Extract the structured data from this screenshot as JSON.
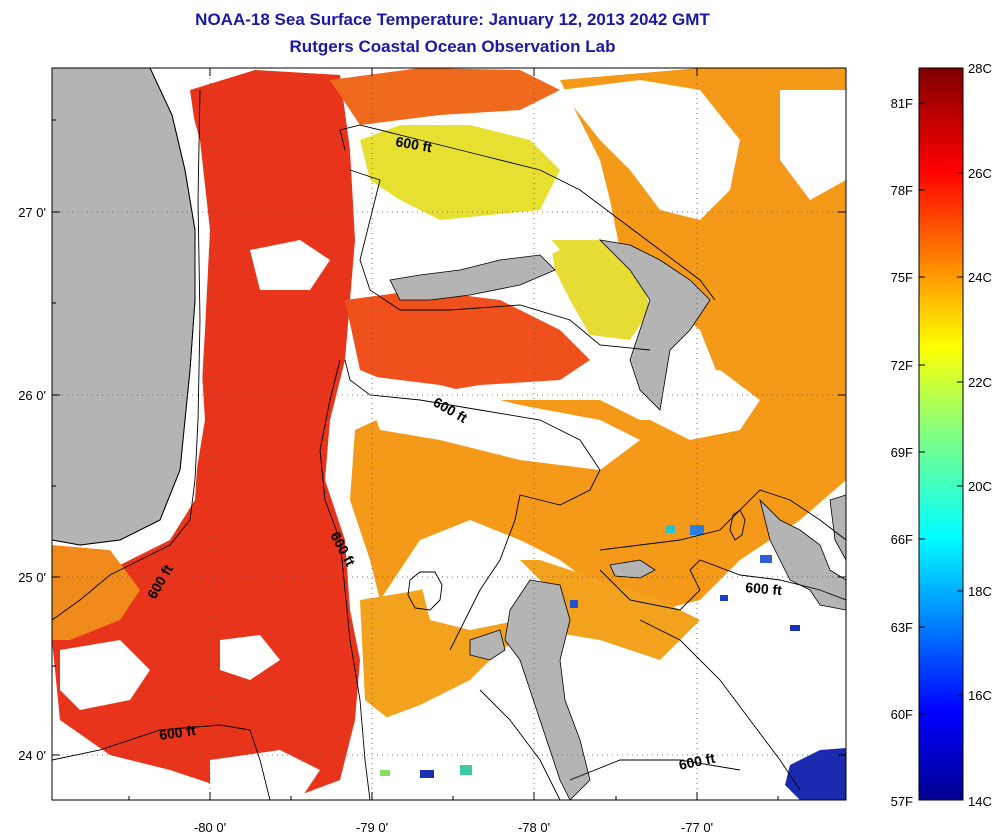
{
  "title_line1": "NOAA-18 Sea Surface Temperature:  January 12, 2013 2042 GMT",
  "title_line2": "Rutgers Coastal Ocean Observation Lab",
  "map": {
    "lon_ticks": [
      "-80 0'",
      "-79 0'",
      "-78 0'",
      "-77 0'"
    ],
    "lat_ticks": [
      "27 0'",
      "26 0'",
      "25 0'",
      "24 0'"
    ],
    "isobath_labels": [
      "600 ft",
      "600 ft",
      "600 ft",
      "600 ft",
      "600 ft",
      "600 ft",
      "600 ft"
    ],
    "colors": {
      "land": "#b4b4b4",
      "cloud": "#ffffff",
      "warm": "#e8341a",
      "mid": "#f49a18",
      "cool": "#e8e030",
      "cold": "#1a2ab0"
    }
  },
  "colorbar": {
    "celsius_labels": [
      "28C",
      "26C",
      "24C",
      "22C",
      "20C",
      "18C",
      "16C",
      "14C"
    ],
    "fahrenheit_labels": [
      "81F",
      "78F",
      "75F",
      "72F",
      "69F",
      "66F",
      "63F",
      "60F",
      "57F"
    ],
    "range_c": [
      14,
      28
    ]
  }
}
